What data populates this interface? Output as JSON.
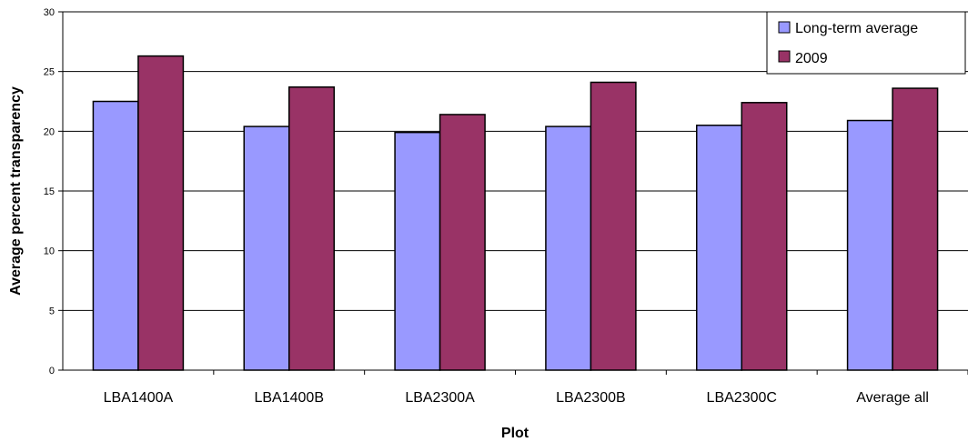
{
  "chart_data": {
    "type": "bar",
    "title": "",
    "xlabel": "Plot",
    "ylabel": "Average percent transparency",
    "ylim": [
      0,
      30
    ],
    "yticks": [
      0,
      5,
      10,
      15,
      20,
      25,
      30
    ],
    "grid": true,
    "legend_position": "top-right",
    "categories": [
      "LBA1400A",
      "LBA1400B",
      "LBA2300A",
      "LBA2300B",
      "LBA2300C",
      "Average all"
    ],
    "series": [
      {
        "name": "Long-term average",
        "color": "#9999ff",
        "values": [
          22.5,
          20.4,
          19.9,
          20.4,
          20.5,
          20.9
        ]
      },
      {
        "name": "2009",
        "color": "#993366",
        "values": [
          26.3,
          23.7,
          21.4,
          24.1,
          22.4,
          23.6
        ]
      }
    ]
  }
}
